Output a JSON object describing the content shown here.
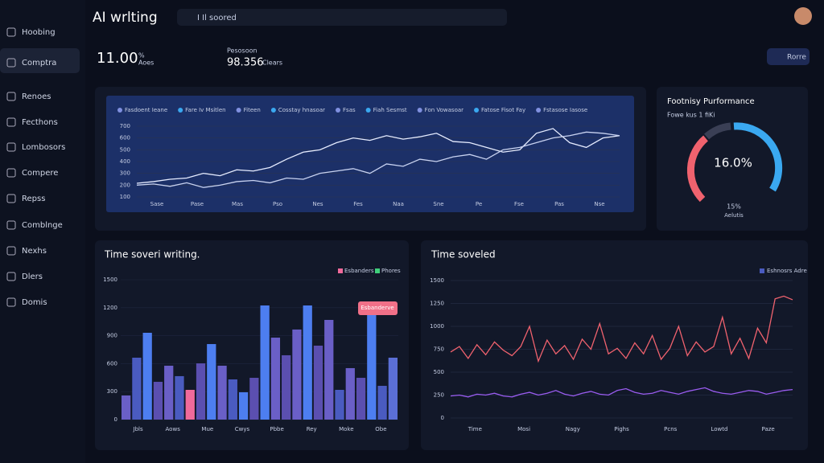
{
  "header": {
    "title": "AI wrlting",
    "search": "I Il soored"
  },
  "sidebar": [
    "Hoobing",
    "Comptra",
    "Renoes",
    "Fecthons",
    "Lombosors",
    "Compere",
    "Repss",
    "Comblnge",
    "Nexhs",
    "Dlers",
    "Domis"
  ],
  "stats": [
    {
      "value": "11.00",
      "unit": "%",
      "label": "Aoes"
    },
    {
      "label": "Pesosoon",
      "value": "98.356",
      "unit": "Clears"
    }
  ],
  "button": "Rorre",
  "line_chart": {
    "type": "line",
    "legend": [
      "Fasdoent Ieane",
      "Fare Iv Msitlen",
      "Fiteen",
      "Cosstay hnasoar",
      "Fsas",
      "Fiah Sesmst",
      "Fon Vowasoar",
      "Fatose Fisot Fay",
      "Fstasose Iasose"
    ],
    "ylim": [
      100,
      700
    ],
    "yticks": [
      100,
      200,
      300,
      400,
      500,
      600,
      700
    ],
    "categories": [
      "Sase",
      "Pase",
      "Mas",
      "Pso",
      "Nes",
      "Fes",
      "Naa",
      "Sne",
      "Pe",
      "Fse",
      "Pas",
      "Nse"
    ],
    "series": [
      {
        "color": "#e6ecff",
        "values": [
          216,
          230,
          250,
          260,
          300,
          280,
          330,
          320,
          350,
          420,
          480,
          500,
          560,
          600,
          580,
          620,
          590,
          610,
          640,
          570,
          560,
          520,
          480,
          500,
          640,
          680,
          560,
          520,
          600,
          620
        ]
      },
      {
        "color": "#c8d2f0",
        "values": [
          200,
          210,
          190,
          220,
          180,
          200,
          230,
          240,
          220,
          260,
          250,
          300,
          320,
          340,
          300,
          380,
          360,
          420,
          400,
          440,
          460,
          420,
          500,
          520,
          560,
          600,
          620,
          650,
          640,
          620
        ]
      }
    ]
  },
  "gauge": {
    "title": "Footnisy Purformance",
    "subtitle": "Fowe kus 1 fiKi",
    "value": "16.0%",
    "sub_value": "15%",
    "sub_label": "Aelutis"
  },
  "bar_chart": {
    "type": "bar",
    "title": "Time soveri writing.",
    "legend": [
      {
        "name": "Esbanders",
        "color": "#f06a9b"
      },
      {
        "name": "Phores",
        "color": "#3fcf7a"
      }
    ],
    "annotation": "Esbanderve",
    "ylim": [
      0,
      1500
    ],
    "yticks": [
      0,
      300,
      600,
      900,
      1200,
      1500
    ],
    "categories": [
      "Jbls",
      "Aows",
      "Mue",
      "Cwys",
      "Pbbe",
      "Rey",
      "Moke",
      "Obe"
    ],
    "values": [
      259,
      664,
      931,
      405,
      578,
      466,
      319,
      603,
      810,
      578,
      431,
      293,
      448,
      1224,
      879,
      690,
      966,
      1224,
      793,
      1069,
      319,
      552,
      448,
      1121,
      362,
      664
    ],
    "colors": [
      "#6a5fc7",
      "#4a5bc0",
      "#4d7ef0",
      "#5b4fb0",
      "#6a5fc7",
      "#4a5bc0",
      "#f06a9b",
      "#5b4fb0",
      "#4d7ef0",
      "#6a5fc7",
      "#4a5bc0",
      "#4d7ef0",
      "#5b4fb0",
      "#4d7ef0",
      "#6a5fc7",
      "#5b4fb0",
      "#6a5fc7",
      "#4d7ef0",
      "#5b4fb0",
      "#6a5fc7",
      "#4a5bc0",
      "#6a5fc7",
      "#5b4fb0",
      "#4d7ef0",
      "#4a5bc0",
      "#5b6fd6"
    ]
  },
  "time_chart": {
    "type": "line",
    "title": "Time soveled",
    "legend": "Eshnosrs Adre",
    "ylim": [
      0,
      1500
    ],
    "yticks": [
      0,
      250,
      500,
      750,
      1000,
      1250,
      1500
    ],
    "categories": [
      "Time",
      "Mosi",
      "Nagy",
      "Pighs",
      "Pcns",
      "Lowtd",
      "Paze"
    ],
    "series": [
      {
        "color": "#f0626e",
        "values": [
          720,
          780,
          650,
          800,
          690,
          830,
          740,
          680,
          780,
          1000,
          620,
          850,
          700,
          790,
          640,
          860,
          750,
          1030,
          700,
          760,
          650,
          820,
          700,
          900,
          640,
          760,
          1000,
          680,
          830,
          720,
          780,
          1100,
          700,
          870,
          650,
          980,
          820,
          1300,
          1330,
          1290
        ]
      },
      {
        "color": "#9a5cf0",
        "values": [
          240,
          250,
          230,
          260,
          250,
          270,
          240,
          230,
          260,
          280,
          250,
          270,
          300,
          260,
          240,
          270,
          290,
          260,
          250,
          300,
          320,
          280,
          260,
          270,
          300,
          280,
          260,
          290,
          310,
          330,
          290,
          270,
          260,
          280,
          300,
          290,
          260,
          280,
          300,
          310
        ]
      }
    ]
  }
}
